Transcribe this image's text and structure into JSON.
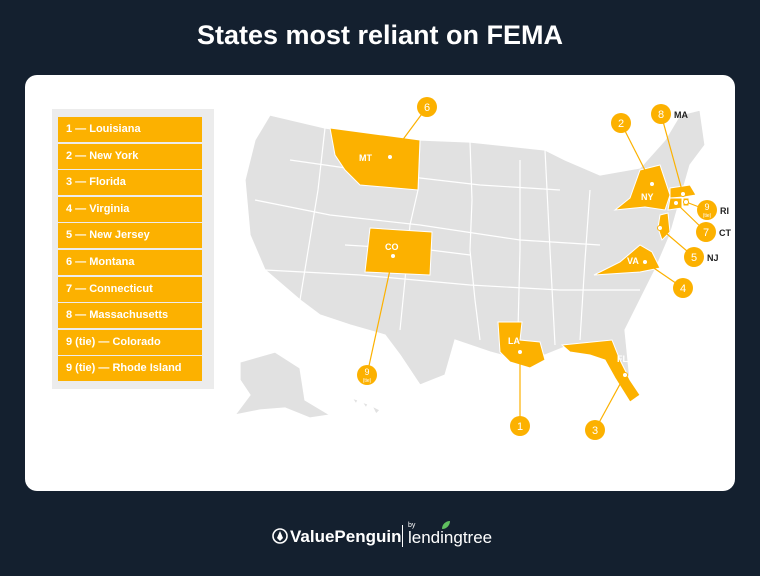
{
  "title": "States most reliant on FEMA",
  "legend": [
    "1 — Louisiana",
    "2 — New York",
    "3 — Florida",
    "4 — Virginia",
    "5 — New Jersey",
    "6 — Montana",
    "7 — Connecticut",
    "8 — Massachusetts",
    "9 (tie) — Colorado",
    "9 (tie) — Rhode Island"
  ],
  "map_labels": {
    "mt": "MT",
    "co": "CO",
    "la": "LA",
    "fl": "FL",
    "va": "VA",
    "ny": "NY"
  },
  "callouts": {
    "la": "1",
    "ny": "2",
    "fl": "3",
    "va": "4",
    "nj": "5",
    "mt": "6",
    "ct": "7",
    "ma": "8",
    "co": "9",
    "ri": "9",
    "tie_note": "(tie)",
    "ma_label": "MA",
    "ri_label": "RI",
    "ct_label": "CT",
    "nj_label": "NJ"
  },
  "colors": {
    "highlight": "#fcb100",
    "state_gray": "#e1e1e1",
    "background": "#14202f"
  },
  "footer": {
    "brand1": "ValuePenguin",
    "by": "by",
    "brand2": "lendingtree"
  }
}
